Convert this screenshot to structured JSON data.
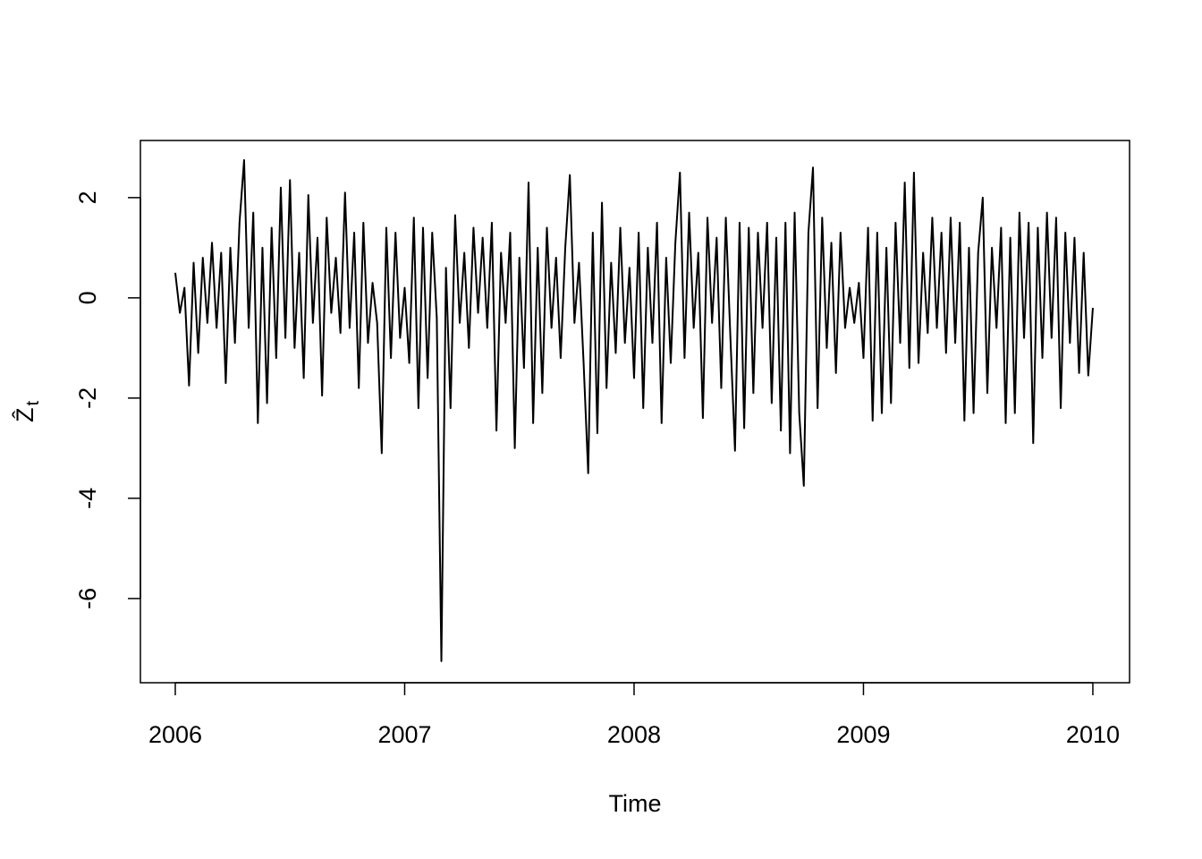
{
  "chart_data": {
    "type": "line",
    "x_label": "Time",
    "y_label": "Ẑ",
    "y_label_subscript": "t",
    "color": "#000000",
    "xlim": [
      2005.848,
      2010.16
    ],
    "ylim": [
      -7.68,
      3.14
    ],
    "xticks": [
      2006,
      2007,
      2008,
      2009,
      2010
    ],
    "yticks": [
      -6,
      -4,
      -2,
      0,
      2
    ],
    "x": [
      2006.0,
      2006.02,
      2006.04,
      2006.06,
      2006.08,
      2006.1,
      2006.12,
      2006.14,
      2006.16,
      2006.18,
      2006.2,
      2006.22,
      2006.24,
      2006.26,
      2006.28,
      2006.3,
      2006.32,
      2006.34,
      2006.36,
      2006.38,
      2006.4,
      2006.42,
      2006.44,
      2006.46,
      2006.48,
      2006.5,
      2006.52,
      2006.54,
      2006.56,
      2006.58,
      2006.6,
      2006.62,
      2006.64,
      2006.66,
      2006.68,
      2006.7,
      2006.72,
      2006.74,
      2006.76,
      2006.78,
      2006.8,
      2006.82,
      2006.84,
      2006.86,
      2006.88,
      2006.9,
      2006.92,
      2006.94,
      2006.96,
      2006.98,
      2007.0,
      2007.02,
      2007.04,
      2007.06,
      2007.08,
      2007.1,
      2007.12,
      2007.14,
      2007.16,
      2007.18,
      2007.2,
      2007.22,
      2007.24,
      2007.26,
      2007.28,
      2007.3,
      2007.32,
      2007.34,
      2007.36,
      2007.38,
      2007.4,
      2007.42,
      2007.44,
      2007.46,
      2007.48,
      2007.5,
      2007.52,
      2007.54,
      2007.56,
      2007.58,
      2007.6,
      2007.62,
      2007.64,
      2007.66,
      2007.68,
      2007.7,
      2007.72,
      2007.74,
      2007.76,
      2007.78,
      2007.8,
      2007.82,
      2007.84,
      2007.86,
      2007.88,
      2007.9,
      2007.92,
      2007.94,
      2007.96,
      2007.98,
      2008.0,
      2008.02,
      2008.04,
      2008.06,
      2008.08,
      2008.1,
      2008.12,
      2008.14,
      2008.16,
      2008.18,
      2008.2,
      2008.22,
      2008.24,
      2008.26,
      2008.28,
      2008.3,
      2008.32,
      2008.34,
      2008.36,
      2008.38,
      2008.4,
      2008.42,
      2008.44,
      2008.46,
      2008.48,
      2008.5,
      2008.52,
      2008.54,
      2008.56,
      2008.58,
      2008.6,
      2008.62,
      2008.64,
      2008.66,
      2008.68,
      2008.7,
      2008.72,
      2008.74,
      2008.76,
      2008.78,
      2008.8,
      2008.82,
      2008.84,
      2008.86,
      2008.88,
      2008.9,
      2008.92,
      2008.94,
      2008.96,
      2008.98,
      2009.0,
      2009.02,
      2009.04,
      2009.06,
      2009.08,
      2009.1,
      2009.12,
      2009.14,
      2009.16,
      2009.18,
      2009.2,
      2009.22,
      2009.24,
      2009.26,
      2009.28,
      2009.3,
      2009.32,
      2009.34,
      2009.36,
      2009.38,
      2009.4,
      2009.42,
      2009.44,
      2009.46,
      2009.48,
      2009.5,
      2009.52,
      2009.54,
      2009.56,
      2009.58,
      2009.6,
      2009.62,
      2009.64,
      2009.66,
      2009.68,
      2009.7,
      2009.72,
      2009.74,
      2009.76,
      2009.78,
      2009.8,
      2009.82,
      2009.84,
      2009.86,
      2009.88,
      2009.9,
      2009.92,
      2009.94,
      2009.96,
      2009.98,
      2010.0
    ],
    "values": [
      0.5,
      -0.3,
      0.2,
      -1.75,
      0.7,
      -1.1,
      0.8,
      -0.5,
      1.1,
      -0.6,
      0.9,
      -1.7,
      1.0,
      -0.9,
      1.5,
      2.75,
      -0.6,
      1.7,
      -2.5,
      1.0,
      -2.1,
      1.4,
      -1.2,
      2.2,
      -0.8,
      2.35,
      -1.0,
      0.9,
      -1.6,
      2.05,
      -0.5,
      1.2,
      -1.95,
      1.6,
      -0.3,
      0.8,
      -0.7,
      2.1,
      -0.6,
      1.3,
      -1.8,
      1.5,
      -0.9,
      0.3,
      -0.5,
      -3.1,
      1.4,
      -1.2,
      1.3,
      -0.8,
      0.2,
      -1.3,
      1.6,
      -2.2,
      1.4,
      -1.6,
      1.3,
      -0.4,
      -7.25,
      0.6,
      -2.2,
      1.65,
      -0.5,
      0.9,
      -1.0,
      1.4,
      -0.3,
      1.2,
      -0.6,
      1.5,
      -2.65,
      0.9,
      -0.5,
      1.3,
      -3.0,
      0.8,
      -1.4,
      2.3,
      -2.5,
      1.0,
      -1.9,
      1.4,
      -0.6,
      0.8,
      -1.2,
      1.0,
      2.45,
      -0.5,
      0.7,
      -1.3,
      -3.5,
      1.3,
      -2.7,
      1.9,
      -1.8,
      0.7,
      -1.1,
      1.4,
      -0.9,
      0.6,
      -1.6,
      1.3,
      -2.2,
      1.0,
      -0.9,
      1.5,
      -2.5,
      0.8,
      -1.3,
      1.1,
      2.5,
      -1.2,
      1.7,
      -0.6,
      0.9,
      -2.4,
      1.6,
      -0.5,
      1.2,
      -1.8,
      1.6,
      -0.8,
      -3.05,
      1.5,
      -2.6,
      1.4,
      -1.9,
      1.3,
      -0.6,
      1.5,
      -2.1,
      1.2,
      -2.65,
      1.5,
      -3.1,
      1.7,
      -2.3,
      -3.75,
      1.3,
      2.6,
      -2.2,
      1.6,
      -1.0,
      1.1,
      -1.5,
      1.3,
      -0.6,
      0.2,
      -0.5,
      0.3,
      -1.2,
      1.4,
      -2.45,
      1.3,
      -2.3,
      1.0,
      -2.1,
      1.5,
      -0.9,
      2.3,
      -1.4,
      2.5,
      -1.3,
      0.9,
      -0.7,
      1.6,
      -0.6,
      1.3,
      -1.1,
      1.6,
      -0.9,
      1.5,
      -2.45,
      1.0,
      -2.3,
      0.9,
      2.0,
      -1.9,
      1.0,
      -0.6,
      1.4,
      -2.5,
      1.2,
      -2.3,
      1.7,
      -0.8,
      1.5,
      -2.9,
      1.4,
      -1.2,
      1.7,
      -0.8,
      1.6,
      -2.2,
      1.3,
      -0.9,
      1.2,
      -1.5,
      0.9,
      -1.55,
      -0.2
    ]
  }
}
